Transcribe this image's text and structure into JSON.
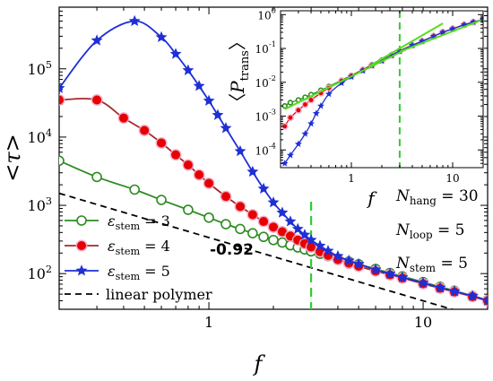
{
  "chart_data": [
    {
      "type": "line",
      "xscale": "log",
      "yscale": "log",
      "xlim": [
        0.2,
        20
      ],
      "ylim": [
        30,
        800000
      ],
      "xlabel": "f",
      "ylabel": "<τ>",
      "x_ticks": [
        1,
        10
      ],
      "x_tick_labels": [
        "1",
        "10"
      ],
      "y_ticks": [
        100,
        1000,
        10000,
        100000
      ],
      "y_tick_labels": [
        {
          "base": "10",
          "exp": "2"
        },
        {
          "base": "10",
          "exp": "3"
        },
        {
          "base": "10",
          "exp": "4"
        },
        {
          "base": "10",
          "exp": "5"
        }
      ],
      "series": [
        {
          "name": "ε_stem = 3",
          "label_parts": {
            "sym": "ε",
            "sub": "stem",
            "rest": " = 3"
          },
          "color": "#2e8b22",
          "marker": "open-circle",
          "x": [
            0.2,
            0.3,
            0.45,
            0.6,
            0.8,
            1.0,
            1.2,
            1.4,
            1.6,
            1.8,
            2.0,
            2.2,
            2.4,
            2.6,
            2.8,
            3.0,
            3.3,
            3.6,
            4.0,
            4.5,
            5.0,
            6.0,
            7.0,
            8.0,
            10.0,
            12.0,
            14.0,
            17.0,
            20.0
          ],
          "y": [
            4500,
            2600,
            1700,
            1200,
            860,
            660,
            530,
            450,
            390,
            345,
            310,
            285,
            260,
            242,
            226,
            212,
            195,
            180,
            165,
            150,
            137,
            117,
            102,
            91,
            75,
            64,
            56,
            47,
            41
          ]
        },
        {
          "name": "ε_stem = 4",
          "label_parts": {
            "sym": "ε",
            "sub": "stem",
            "rest": " = 4"
          },
          "color": "#e60000",
          "line_color": "#a52a2a",
          "marker": "filled-circle",
          "x": [
            0.2,
            0.3,
            0.4,
            0.5,
            0.6,
            0.7,
            0.8,
            0.9,
            1.0,
            1.2,
            1.4,
            1.6,
            1.8,
            2.0,
            2.2,
            2.4,
            2.6,
            2.8,
            3.0,
            3.3,
            3.6,
            4.0,
            4.5,
            5.0,
            6.0,
            7.0,
            8.0,
            10.0,
            12.0,
            14.0,
            17.0,
            20.0
          ],
          "y": [
            35000,
            35000,
            19000,
            12500,
            8200,
            5500,
            3900,
            2800,
            2100,
            1350,
            960,
            730,
            580,
            480,
            410,
            355,
            310,
            275,
            245,
            210,
            185,
            160,
            142,
            128,
            109,
            96,
            86,
            71,
            61,
            54,
            46,
            40
          ]
        },
        {
          "name": "ε_stem = 5",
          "label_parts": {
            "sym": "ε",
            "sub": "stem",
            "rest": " = 5"
          },
          "color": "#1f2fd6",
          "marker": "star",
          "x": [
            0.2,
            0.3,
            0.45,
            0.6,
            0.7,
            0.8,
            0.9,
            1.0,
            1.1,
            1.2,
            1.4,
            1.6,
            1.8,
            2.0,
            2.2,
            2.4,
            2.6,
            2.8,
            3.0,
            3.3,
            3.6,
            4.0,
            4.5,
            5.0,
            6.0,
            7.0,
            8.0,
            10.0,
            12.0,
            14.0,
            17.0,
            20.0
          ],
          "y": [
            52000,
            260000,
            500000,
            290000,
            165000,
            95000,
            56000,
            34000,
            21000,
            13500,
            6200,
            3100,
            1750,
            1100,
            780,
            580,
            450,
            370,
            310,
            255,
            215,
            180,
            155,
            138,
            114,
            99,
            88,
            73,
            62,
            55,
            47,
            40
          ]
        }
      ],
      "reference_line": {
        "name": "linear polymer",
        "color": "#000000",
        "style": "dashed",
        "slope": -0.92,
        "x": [
          0.2,
          20
        ],
        "y": [
          1500,
          21
        ]
      },
      "slope_annotation": "-0.92",
      "vertical_line": {
        "x": 3.0,
        "color": "#33cc33",
        "style": "dashed"
      },
      "parameters": [
        {
          "sym": "N",
          "sub": "hang",
          "rest": " = 30"
        },
        {
          "sym": "N",
          "sub": "loop",
          "rest": " = 5"
        },
        {
          "sym": "N",
          "sub": "stem",
          "rest": " = 5"
        }
      ]
    },
    {
      "type": "line",
      "inset": true,
      "xscale": "log",
      "yscale": "log",
      "xlim": [
        0.2,
        20
      ],
      "ylim": [
        3e-05,
        1.3
      ],
      "xlabel": "f",
      "ylabel_parts": {
        "sym": "P",
        "sub": "trans"
      },
      "x_ticks": [
        1,
        10
      ],
      "x_tick_labels": [
        "1",
        "10"
      ],
      "y_ticks": [
        0.0001,
        0.001,
        0.01,
        0.1,
        1
      ],
      "y_tick_labels": [
        {
          "base": "10",
          "exp": "-4"
        },
        {
          "base": "10",
          "exp": "-3"
        },
        {
          "base": "10",
          "exp": "-2"
        },
        {
          "base": "10",
          "exp": "-1"
        },
        {
          "base": "10",
          "exp": "0"
        }
      ],
      "series": [
        {
          "color": "#2e8b22",
          "marker": "open-circle",
          "x": [
            0.22,
            0.25,
            0.3,
            0.35,
            0.4,
            0.5,
            0.6,
            0.8,
            1.0,
            1.3,
            1.6,
            2.0,
            2.5,
            3.0,
            4.0,
            5.0,
            6.5,
            8.0,
            10.0,
            13.0,
            16.0,
            20.0
          ],
          "y": [
            0.002,
            0.0025,
            0.003,
            0.0036,
            0.0043,
            0.0058,
            0.0075,
            0.0115,
            0.016,
            0.024,
            0.033,
            0.045,
            0.064,
            0.085,
            0.125,
            0.165,
            0.23,
            0.3,
            0.38,
            0.5,
            0.6,
            0.72
          ]
        },
        {
          "color": "#e60000",
          "marker": "filled-circle",
          "x": [
            0.22,
            0.25,
            0.3,
            0.35,
            0.4,
            0.5,
            0.6,
            0.8,
            1.0,
            1.3,
            1.6,
            2.0,
            2.5,
            3.0,
            4.0,
            5.0,
            6.5,
            8.0,
            10.0,
            13.0,
            16.0,
            20.0
          ],
          "y": [
            0.0005,
            0.0009,
            0.0015,
            0.0022,
            0.003,
            0.0048,
            0.0068,
            0.011,
            0.0155,
            0.023,
            0.032,
            0.044,
            0.063,
            0.084,
            0.124,
            0.164,
            0.23,
            0.3,
            0.38,
            0.5,
            0.6,
            0.72
          ]
        },
        {
          "color": "#1f2fd6",
          "marker": "star",
          "x": [
            0.22,
            0.25,
            0.3,
            0.35,
            0.4,
            0.45,
            0.5,
            0.6,
            0.8,
            1.0,
            1.3,
            1.6,
            2.0,
            2.5,
            3.0,
            4.0,
            5.0,
            6.5,
            8.0,
            10.0,
            13.0,
            16.0,
            20.0
          ],
          "y": [
            4e-05,
            7e-05,
            0.00015,
            0.0003,
            0.0006,
            0.0012,
            0.002,
            0.0045,
            0.0095,
            0.0145,
            0.022,
            0.031,
            0.043,
            0.062,
            0.083,
            0.123,
            0.163,
            0.23,
            0.3,
            0.38,
            0.5,
            0.6,
            0.72
          ]
        }
      ],
      "fit_lines": [
        {
          "color": "#55dd22",
          "x": [
            0.22,
            3.5
          ],
          "y": [
            0.0016,
            0.095
          ]
        },
        {
          "color": "#55dd22",
          "x": [
            1.5,
            8.0
          ],
          "y": [
            0.03,
            0.55
          ]
        },
        {
          "color": "#55dd22",
          "x": [
            3.0,
            20.0
          ],
          "y": [
            0.08,
            0.72
          ]
        }
      ],
      "vertical_line": {
        "x": 3.0,
        "color": "#33cc33",
        "style": "dashed"
      }
    }
  ]
}
